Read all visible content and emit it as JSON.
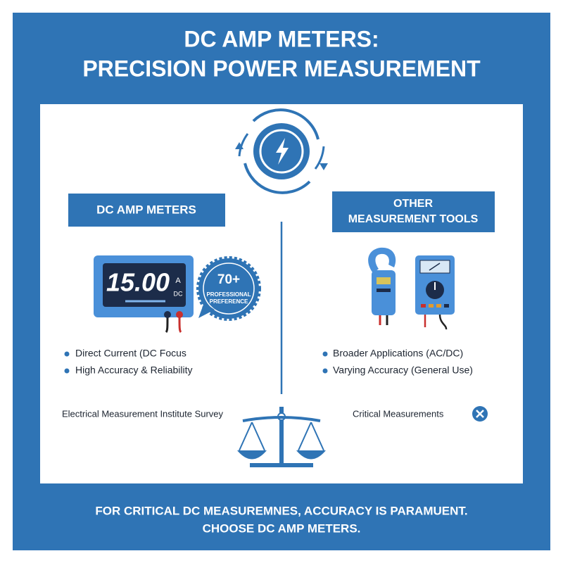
{
  "header": {
    "title_lines": [
      "DC AMP METERS:",
      "PRECISION POWER MEASUREMENT"
    ]
  },
  "left": {
    "heading": "DC AMP METERS",
    "display": {
      "reading": "15.00",
      "unit": "A",
      "mode": "DC"
    },
    "badge": {
      "value": "70+",
      "label_lines": [
        "PROFESSIONAL",
        "PREFERENCE"
      ]
    },
    "bullets": [
      "Direct Current (DC Focus",
      "High Accuracy & Reliability"
    ],
    "source": "Electrical Measurement Institute Survey"
  },
  "right": {
    "heading_lines": [
      "OTHER",
      "MEASUREMENT TOOLS"
    ],
    "bullets": [
      "Broader Applications (AC/DC)",
      "Varying Accuracy (General Use)"
    ],
    "note": "Critical Measurements"
  },
  "footer": {
    "lines": [
      "FOR CRITICAL DC MEASUREMNES, ACCURACY IS PARAMUENT.",
      "CHOOSE DC AMP METERS."
    ]
  }
}
